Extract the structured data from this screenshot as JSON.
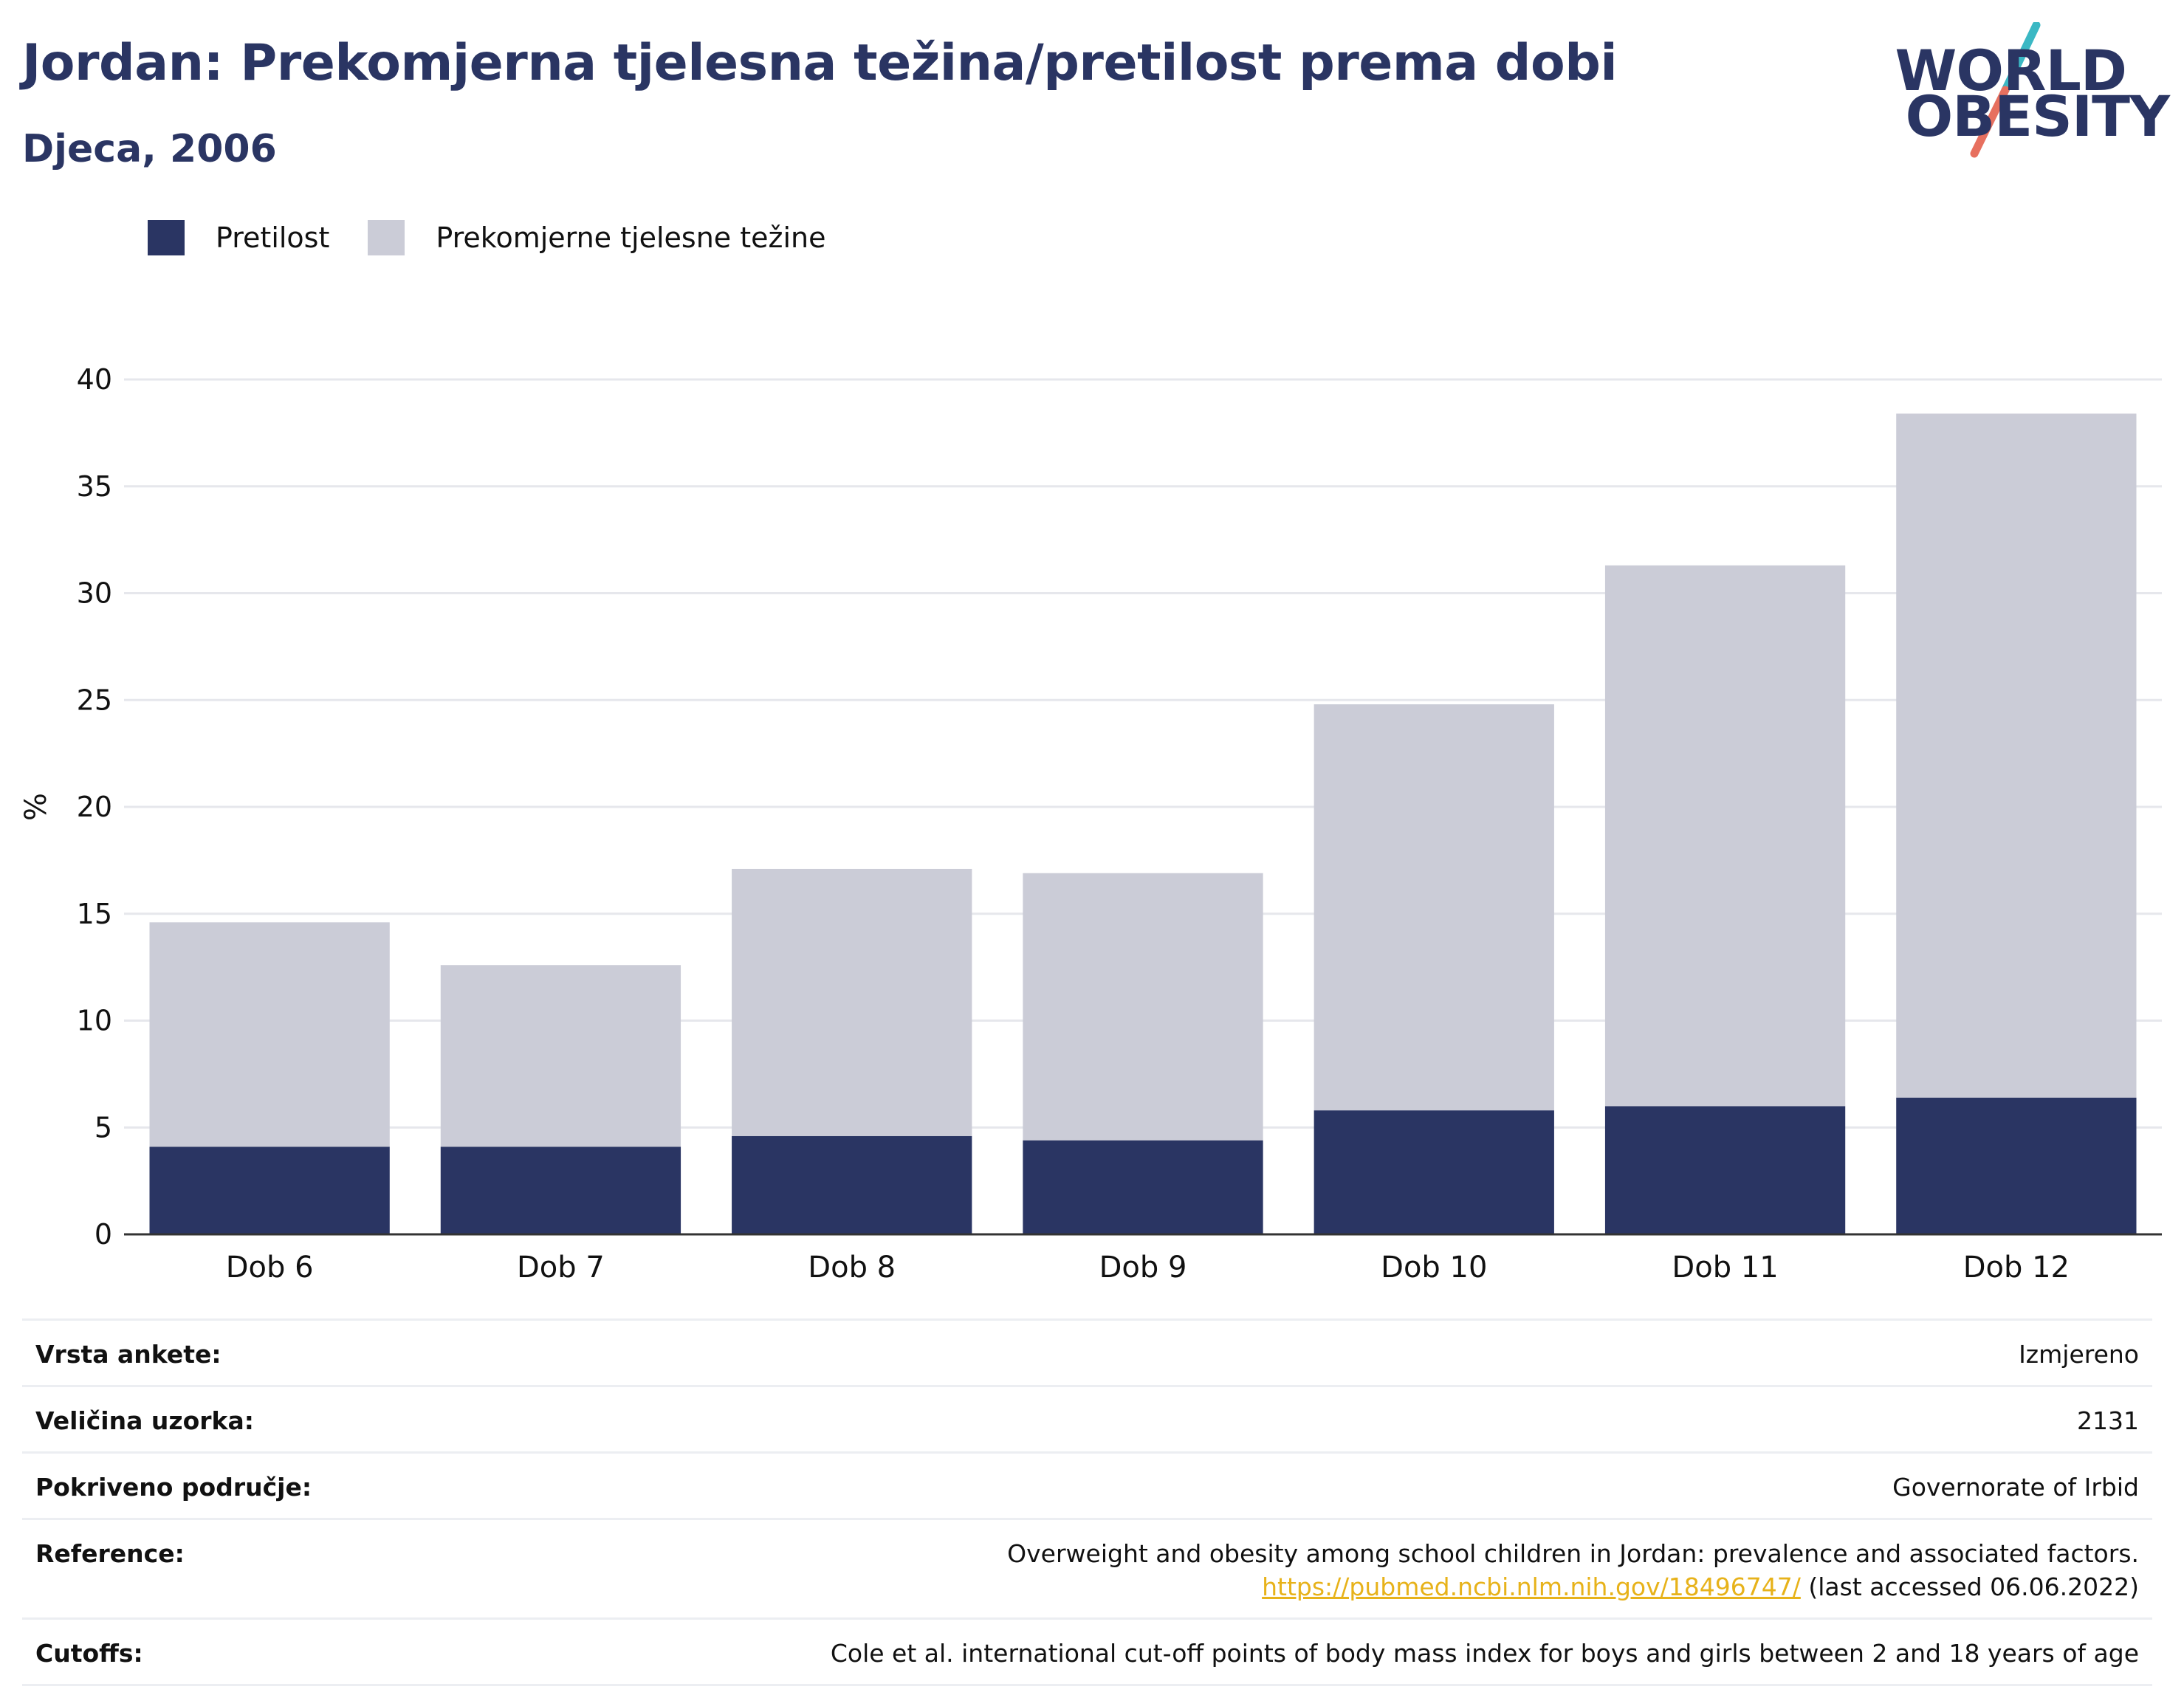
{
  "header": {
    "title": "Jordan: Prekomjerna tjelesna težina/pretilost prema dobi",
    "subtitle": "Djeca, 2006"
  },
  "logo": {
    "line1": "WORLD",
    "line2": "OBESITY",
    "colors": {
      "text": "#2a3563",
      "slash_top": "#3bb8c4",
      "slash_bottom": "#e7705f"
    }
  },
  "legend": {
    "items": [
      {
        "label": "Pretilost",
        "color": "#2a3563"
      },
      {
        "label": "Prekomjerne tjelesne težine",
        "color": "#cbccd7"
      }
    ]
  },
  "chart_data": {
    "type": "bar",
    "stacked": true,
    "categories": [
      "Dob 6",
      "Dob 7",
      "Dob 8",
      "Dob 9",
      "Dob 10",
      "Dob 11",
      "Dob 12"
    ],
    "series": [
      {
        "name": "Pretilost",
        "color": "#2a3563",
        "values": [
          4.1,
          4.1,
          4.6,
          4.4,
          5.8,
          6.0,
          6.4
        ]
      },
      {
        "name": "Prekomjerne tjelesne težine",
        "color": "#cbccd7",
        "values": [
          10.5,
          8.5,
          12.5,
          12.5,
          19.0,
          25.3,
          32.0
        ]
      }
    ],
    "ylabel": "%",
    "ylim": [
      0,
      40
    ],
    "yticks": [
      0,
      5,
      10,
      15,
      20,
      25,
      30,
      35,
      40
    ],
    "grid": true,
    "legend_position": "top-left"
  },
  "info": {
    "rows": [
      {
        "label": "Vrsta ankete:",
        "value": "Izmjereno"
      },
      {
        "label": "Veličina uzorka:",
        "value": "2131"
      },
      {
        "label": "Pokriveno područje:",
        "value": "Governorate of Irbid"
      }
    ],
    "reference": {
      "label": "Reference:",
      "text": "Overweight and obesity among school children in Jordan: prevalence and associated factors.",
      "link": "https://pubmed.ncbi.nlm.nih.gov/18496747/",
      "note": "(last accessed 06.06.2022)"
    },
    "cutoffs": {
      "label": "Cutoffs:",
      "value": "Cole et al. international cut-off points of body mass index for boys and girls between 2 and 18 years of age"
    }
  }
}
